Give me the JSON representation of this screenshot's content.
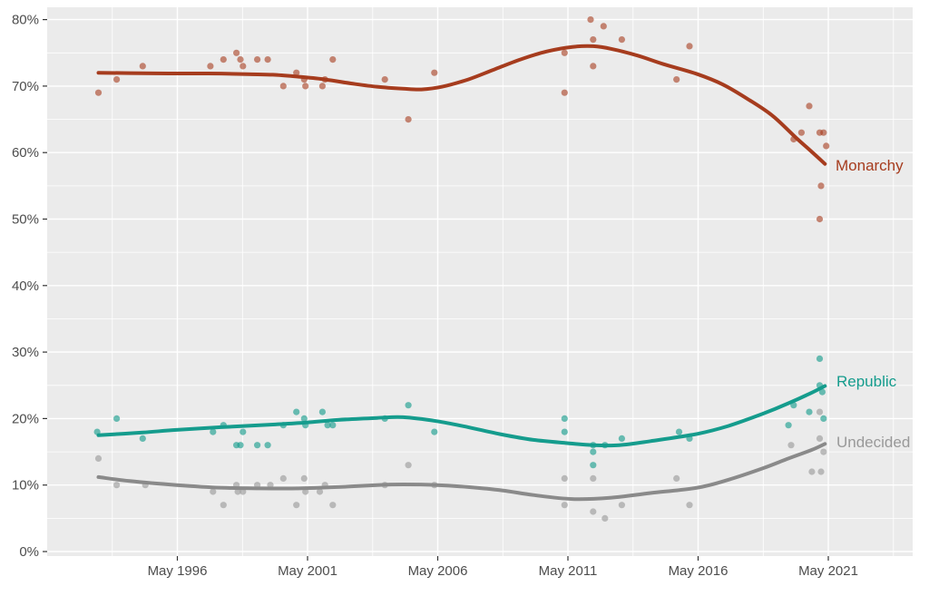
{
  "chart_data": {
    "type": "scatter",
    "title": "",
    "subtitle": "",
    "legend_position": "right-inline-labels",
    "grid": "on",
    "panel": {
      "background": "#EBEBEB",
      "grid_major_color": "#FFFFFF",
      "grid_minor_color": "#FFFFFF",
      "axis_text_color": "#4D4D4D",
      "tick_mark_color": "#333333",
      "outer_background": "#FFFFFF"
    },
    "x_axis": {
      "label": "",
      "domain_years": [
        1991.33,
        2024.58
      ],
      "tick_years": [
        1996.33,
        2001.33,
        2006.33,
        2011.33,
        2016.33,
        2021.33
      ],
      "tick_labels": [
        "May 1996",
        "May 2001",
        "May 2006",
        "May 2011",
        "May 2016",
        "May 2021"
      ],
      "minor_years": [
        1993.83,
        1998.83,
        2003.83,
        2008.83,
        2013.83,
        2018.83,
        2023.83
      ]
    },
    "y_axis": {
      "label": "",
      "domain": [
        0,
        80
      ],
      "ticks": [
        0,
        10,
        20,
        30,
        40,
        50,
        60,
        70,
        80
      ],
      "tick_labels": [
        "0%",
        "10%",
        "20%",
        "30%",
        "40%",
        "50%",
        "60%",
        "70%",
        "80%"
      ],
      "minor": [
        5,
        15,
        25,
        35,
        45,
        55,
        65,
        75
      ]
    },
    "series": [
      {
        "name": "Monarchy",
        "color": "#A63C1E",
        "point_opacity": 0.6,
        "label_anchor": {
          "year": 2021.62,
          "value": 58.0
        },
        "points": [
          [
            1993.3,
            69
          ],
          [
            1994.0,
            71
          ],
          [
            1995.0,
            73
          ],
          [
            1997.6,
            73
          ],
          [
            1998.1,
            74
          ],
          [
            1998.6,
            75
          ],
          [
            1998.75,
            74
          ],
          [
            1998.85,
            73
          ],
          [
            1999.4,
            74
          ],
          [
            1999.8,
            74
          ],
          [
            2000.4,
            70
          ],
          [
            2000.9,
            72
          ],
          [
            2001.2,
            71
          ],
          [
            2001.25,
            70
          ],
          [
            2001.9,
            70
          ],
          [
            2002.0,
            71
          ],
          [
            2002.3,
            74
          ],
          [
            2004.3,
            71
          ],
          [
            2005.2,
            65
          ],
          [
            2006.2,
            72
          ],
          [
            2011.2,
            75
          ],
          [
            2011.2,
            69
          ],
          [
            2012.2,
            80
          ],
          [
            2012.3,
            77
          ],
          [
            2012.3,
            73
          ],
          [
            2012.7,
            79
          ],
          [
            2013.4,
            77
          ],
          [
            2015.5,
            71
          ],
          [
            2016.0,
            76
          ],
          [
            2020.0,
            62
          ],
          [
            2020.3,
            63
          ],
          [
            2020.6,
            67
          ],
          [
            2021.0,
            63
          ],
          [
            2021.15,
            63
          ],
          [
            2021.25,
            61
          ],
          [
            2021.05,
            55
          ],
          [
            2021.0,
            50
          ]
        ],
        "trend": [
          [
            1993.3,
            72.0
          ],
          [
            1994.5,
            71.95
          ],
          [
            1996.0,
            71.9
          ],
          [
            1997.5,
            71.9
          ],
          [
            1999.0,
            71.8
          ],
          [
            2000.0,
            71.7
          ],
          [
            2001.0,
            71.4
          ],
          [
            2002.0,
            71.0
          ],
          [
            2003.0,
            70.4
          ],
          [
            2004.0,
            69.9
          ],
          [
            2005.0,
            69.6
          ],
          [
            2005.7,
            69.5
          ],
          [
            2006.5,
            69.9
          ],
          [
            2007.5,
            71.0
          ],
          [
            2008.5,
            72.5
          ],
          [
            2009.5,
            74.0
          ],
          [
            2010.5,
            75.2
          ],
          [
            2011.5,
            75.9
          ],
          [
            2012.3,
            76.0
          ],
          [
            2013.0,
            75.6
          ],
          [
            2014.0,
            74.6
          ],
          [
            2015.0,
            73.3
          ],
          [
            2016.3,
            71.8
          ],
          [
            2017.3,
            70.2
          ],
          [
            2018.3,
            67.9
          ],
          [
            2019.2,
            65.5
          ],
          [
            2020.1,
            62.2
          ],
          [
            2020.7,
            60.1
          ],
          [
            2021.2,
            58.3
          ]
        ]
      },
      {
        "name": "Republic",
        "color": "#159C8D",
        "point_opacity": 0.62,
        "label_anchor": {
          "year": 2021.65,
          "value": 25.5
        },
        "points": [
          [
            1993.25,
            18
          ],
          [
            1994.0,
            20
          ],
          [
            1995.0,
            17
          ],
          [
            1997.7,
            18
          ],
          [
            1998.1,
            19
          ],
          [
            1998.6,
            16
          ],
          [
            1998.75,
            16
          ],
          [
            1998.85,
            18
          ],
          [
            1999.4,
            16
          ],
          [
            1999.8,
            16
          ],
          [
            2000.4,
            19
          ],
          [
            2000.9,
            21
          ],
          [
            2001.2,
            20
          ],
          [
            2001.25,
            19
          ],
          [
            2001.9,
            21
          ],
          [
            2002.1,
            19
          ],
          [
            2002.3,
            19
          ],
          [
            2004.3,
            20
          ],
          [
            2005.2,
            22
          ],
          [
            2006.2,
            18
          ],
          [
            2011.2,
            20
          ],
          [
            2011.2,
            18
          ],
          [
            2012.3,
            16
          ],
          [
            2012.3,
            15
          ],
          [
            2012.3,
            13
          ],
          [
            2012.75,
            16
          ],
          [
            2013.4,
            17
          ],
          [
            2015.6,
            18
          ],
          [
            2016.0,
            17
          ],
          [
            2019.8,
            19
          ],
          [
            2020.0,
            22
          ],
          [
            2020.6,
            21
          ],
          [
            2021.0,
            29
          ],
          [
            2021.0,
            25
          ],
          [
            2021.1,
            24
          ],
          [
            2021.15,
            20
          ]
        ],
        "trend": [
          [
            1993.3,
            17.5
          ],
          [
            1995.0,
            17.9
          ],
          [
            1996.3,
            18.3
          ],
          [
            1998.0,
            18.7
          ],
          [
            2000.0,
            19.1
          ],
          [
            2001.3,
            19.4
          ],
          [
            2002.5,
            19.8
          ],
          [
            2004.0,
            20.1
          ],
          [
            2005.0,
            20.2
          ],
          [
            2006.3,
            19.6
          ],
          [
            2007.5,
            18.7
          ],
          [
            2008.8,
            17.6
          ],
          [
            2010.0,
            16.8
          ],
          [
            2011.3,
            16.3
          ],
          [
            2012.3,
            16.0
          ],
          [
            2013.3,
            16.0
          ],
          [
            2014.5,
            16.6
          ],
          [
            2016.3,
            17.7
          ],
          [
            2017.5,
            18.9
          ],
          [
            2018.8,
            20.7
          ],
          [
            2019.8,
            22.3
          ],
          [
            2020.7,
            23.9
          ],
          [
            2021.2,
            24.9
          ]
        ]
      },
      {
        "name": "Undecided",
        "color": "#999999",
        "line_color": "#8A8A8A",
        "point_opacity": 0.62,
        "label_anchor": {
          "year": 2021.65,
          "value": 16.4
        },
        "points": [
          [
            1993.3,
            14
          ],
          [
            1994.0,
            10
          ],
          [
            1995.1,
            10
          ],
          [
            1997.7,
            9
          ],
          [
            1998.1,
            7
          ],
          [
            1998.6,
            10
          ],
          [
            1998.65,
            9
          ],
          [
            1998.85,
            9
          ],
          [
            1999.4,
            10
          ],
          [
            1999.9,
            10
          ],
          [
            2000.4,
            11
          ],
          [
            2000.9,
            7
          ],
          [
            2001.2,
            11
          ],
          [
            2001.25,
            9
          ],
          [
            2001.8,
            9
          ],
          [
            2002.0,
            10
          ],
          [
            2002.3,
            7
          ],
          [
            2004.3,
            10
          ],
          [
            2005.2,
            13
          ],
          [
            2006.2,
            10
          ],
          [
            2011.2,
            11
          ],
          [
            2011.2,
            7
          ],
          [
            2012.3,
            11
          ],
          [
            2012.3,
            6
          ],
          [
            2012.75,
            5
          ],
          [
            2013.4,
            7
          ],
          [
            2015.5,
            11
          ],
          [
            2016.0,
            7
          ],
          [
            2019.9,
            16
          ],
          [
            2020.7,
            12
          ],
          [
            2021.0,
            21
          ],
          [
            2021.0,
            17
          ],
          [
            2021.05,
            12
          ],
          [
            2021.15,
            15
          ]
        ],
        "trend": [
          [
            1993.3,
            11.2
          ],
          [
            1994.5,
            10.6
          ],
          [
            1996.3,
            10.0
          ],
          [
            1998.0,
            9.6
          ],
          [
            1999.5,
            9.5
          ],
          [
            2001.0,
            9.5
          ],
          [
            2002.5,
            9.7
          ],
          [
            2004.0,
            10.0
          ],
          [
            2005.0,
            10.1
          ],
          [
            2006.3,
            10.0
          ],
          [
            2007.5,
            9.7
          ],
          [
            2008.8,
            9.2
          ],
          [
            2010.0,
            8.5
          ],
          [
            2011.5,
            7.9
          ],
          [
            2013.0,
            8.1
          ],
          [
            2014.5,
            8.8
          ],
          [
            2016.3,
            9.6
          ],
          [
            2017.5,
            10.8
          ],
          [
            2018.8,
            12.5
          ],
          [
            2019.8,
            14.0
          ],
          [
            2020.7,
            15.3
          ],
          [
            2021.2,
            16.2
          ]
        ]
      }
    ]
  }
}
